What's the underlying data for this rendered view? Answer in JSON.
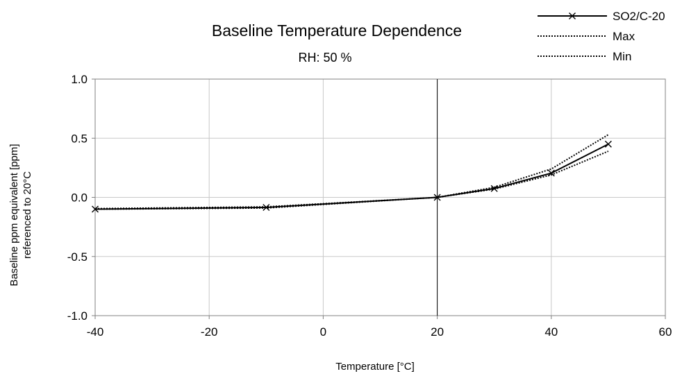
{
  "chart_data": {
    "type": "line",
    "title": "Baseline Temperature Dependence",
    "subtitle": "RH: 50 %",
    "xlabel": "Temperature [°C]",
    "ylabel_lines": [
      "Baseline ppm equivalent [ppm]",
      "referenced to 20°C"
    ],
    "xlim": [
      -40,
      60
    ],
    "ylim": [
      -1.0,
      1.0
    ],
    "x_ticks": [
      -40,
      -20,
      0,
      20,
      40,
      60
    ],
    "x_tick_labels": [
      "-40",
      "-20",
      "0",
      "20",
      "40",
      "60"
    ],
    "y_ticks": [
      1.0,
      0.5,
      0.0,
      -0.5,
      -1.0
    ],
    "y_tick_labels": [
      "1.0",
      "0.5",
      "0.0",
      "-0.5",
      "-1.0"
    ],
    "grid": true,
    "reference_line_x": 20,
    "legend_position": "top-right",
    "series": [
      {
        "name": "SO2/C-20",
        "style": "solid",
        "marker": "x",
        "color": "#000000",
        "x": [
          -40,
          -10,
          20,
          30,
          40,
          50
        ],
        "y": [
          -0.1,
          -0.085,
          0.0,
          0.075,
          0.205,
          0.45
        ]
      },
      {
        "name": "Max",
        "style": "dotted",
        "marker": "none",
        "color": "#000000",
        "x": [
          -40,
          -10,
          20,
          30,
          40,
          50
        ],
        "y": [
          -0.095,
          -0.08,
          0.0,
          0.085,
          0.24,
          0.53
        ]
      },
      {
        "name": "Min",
        "style": "dotted",
        "marker": "none",
        "color": "#000000",
        "x": [
          -40,
          -10,
          20,
          30,
          40,
          50
        ],
        "y": [
          -0.1,
          -0.09,
          0.0,
          0.07,
          0.19,
          0.39
        ]
      }
    ]
  }
}
